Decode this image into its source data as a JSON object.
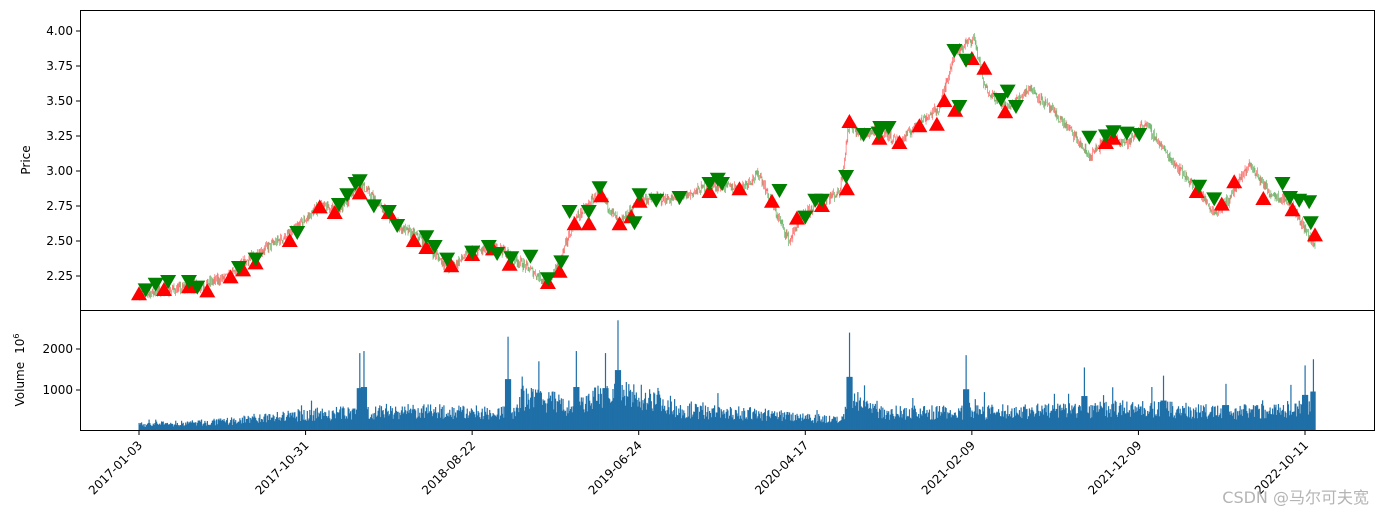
{
  "chart_data": [
    {
      "type": "candlestick",
      "ylabel": "Price",
      "ylim": [
        2.02,
        4.14
      ],
      "yticks": [
        "2.25",
        "2.50",
        "2.75",
        "3.00",
        "3.25",
        "3.50",
        "3.75",
        "4.00"
      ],
      "colors": {
        "up": "#ff0000",
        "down": "#008000",
        "buy_marker": "#ff0000",
        "sell_marker": "#008000"
      },
      "close_path": [
        [
          0,
          2.12
        ],
        [
          73,
          2.18
        ],
        [
          109,
          2.25
        ],
        [
          133,
          2.38
        ],
        [
          181,
          2.55
        ],
        [
          217,
          2.75
        ],
        [
          241,
          2.72
        ],
        [
          265,
          2.92
        ],
        [
          289,
          2.75
        ],
        [
          313,
          2.6
        ],
        [
          337,
          2.52
        ],
        [
          373,
          2.3
        ],
        [
          397,
          2.42
        ],
        [
          433,
          2.45
        ],
        [
          457,
          2.35
        ],
        [
          491,
          2.2
        ],
        [
          505,
          2.35
        ],
        [
          523,
          2.65
        ],
        [
          553,
          2.85
        ],
        [
          577,
          2.62
        ],
        [
          601,
          2.8
        ],
        [
          649,
          2.8
        ],
        [
          685,
          2.9
        ],
        [
          721,
          2.88
        ],
        [
          745,
          2.98
        ],
        [
          757,
          2.8
        ],
        [
          781,
          2.5
        ],
        [
          793,
          2.65
        ],
        [
          817,
          2.78
        ],
        [
          841,
          2.85
        ],
        [
          853,
          3.35
        ],
        [
          865,
          3.25
        ],
        [
          889,
          3.3
        ],
        [
          913,
          3.2
        ],
        [
          937,
          3.35
        ],
        [
          961,
          3.45
        ],
        [
          979,
          3.85
        ],
        [
          1003,
          3.95
        ],
        [
          1015,
          3.6
        ],
        [
          1033,
          3.5
        ],
        [
          1045,
          3.45
        ],
        [
          1069,
          3.6
        ],
        [
          1093,
          3.45
        ],
        [
          1117,
          3.3
        ],
        [
          1141,
          3.1
        ],
        [
          1165,
          3.25
        ],
        [
          1189,
          3.2
        ],
        [
          1207,
          3.35
        ],
        [
          1237,
          3.1
        ],
        [
          1273,
          2.85
        ],
        [
          1291,
          2.7
        ],
        [
          1309,
          2.8
        ],
        [
          1333,
          3.05
        ],
        [
          1357,
          2.85
        ],
        [
          1381,
          2.78
        ],
        [
          1399,
          2.6
        ],
        [
          1412,
          2.45
        ]
      ],
      "buy_signals": [
        [
          0,
          2.12
        ],
        [
          30,
          2.15
        ],
        [
          60,
          2.17
        ],
        [
          82,
          2.14
        ],
        [
          110,
          2.24
        ],
        [
          125,
          2.29
        ],
        [
          140,
          2.34
        ],
        [
          181,
          2.5
        ],
        [
          217,
          2.74
        ],
        [
          235,
          2.7
        ],
        [
          265,
          2.84
        ],
        [
          300,
          2.7
        ],
        [
          330,
          2.5
        ],
        [
          345,
          2.45
        ],
        [
          375,
          2.32
        ],
        [
          400,
          2.4
        ],
        [
          425,
          2.44
        ],
        [
          445,
          2.33
        ],
        [
          491,
          2.2
        ],
        [
          505,
          2.28
        ],
        [
          523,
          2.62
        ],
        [
          540,
          2.62
        ],
        [
          555,
          2.82
        ],
        [
          577,
          2.62
        ],
        [
          591,
          2.67
        ],
        [
          601,
          2.78
        ],
        [
          685,
          2.85
        ],
        [
          721,
          2.87
        ],
        [
          760,
          2.78
        ],
        [
          790,
          2.66
        ],
        [
          820,
          2.75
        ],
        [
          850,
          2.87
        ],
        [
          853,
          3.35
        ],
        [
          889,
          3.23
        ],
        [
          913,
          3.2
        ],
        [
          937,
          3.32
        ],
        [
          958,
          3.33
        ],
        [
          967,
          3.5
        ],
        [
          980,
          3.43
        ],
        [
          1000,
          3.8
        ],
        [
          1015,
          3.73
        ],
        [
          1040,
          3.42
        ],
        [
          1161,
          3.2
        ],
        [
          1170,
          3.23
        ],
        [
          1270,
          2.85
        ],
        [
          1300,
          2.76
        ],
        [
          1315,
          2.92
        ],
        [
          1350,
          2.8
        ],
        [
          1385,
          2.72
        ],
        [
          1412,
          2.54
        ]
      ],
      "sell_signals": [
        [
          8,
          2.14
        ],
        [
          20,
          2.18
        ],
        [
          35,
          2.2
        ],
        [
          60,
          2.2
        ],
        [
          70,
          2.16
        ],
        [
          120,
          2.3
        ],
        [
          140,
          2.36
        ],
        [
          190,
          2.55
        ],
        [
          240,
          2.75
        ],
        [
          250,
          2.82
        ],
        [
          260,
          2.9
        ],
        [
          265,
          2.92
        ],
        [
          282,
          2.74
        ],
        [
          300,
          2.7
        ],
        [
          310,
          2.6
        ],
        [
          345,
          2.52
        ],
        [
          355,
          2.45
        ],
        [
          370,
          2.36
        ],
        [
          400,
          2.41
        ],
        [
          420,
          2.45
        ],
        [
          430,
          2.4
        ],
        [
          447,
          2.37
        ],
        [
          470,
          2.38
        ],
        [
          491,
          2.22
        ],
        [
          507,
          2.34
        ],
        [
          517,
          2.7
        ],
        [
          540,
          2.7
        ],
        [
          553,
          2.87
        ],
        [
          595,
          2.62
        ],
        [
          601,
          2.82
        ],
        [
          621,
          2.78
        ],
        [
          649,
          2.8
        ],
        [
          685,
          2.9
        ],
        [
          695,
          2.93
        ],
        [
          700,
          2.9
        ],
        [
          769,
          2.85
        ],
        [
          800,
          2.66
        ],
        [
          812,
          2.78
        ],
        [
          820,
          2.78
        ],
        [
          849,
          2.95
        ],
        [
          870,
          3.25
        ],
        [
          888,
          3.26
        ],
        [
          890,
          3.3
        ],
        [
          900,
          3.3
        ],
        [
          985,
          3.45
        ],
        [
          979,
          3.85
        ],
        [
          993,
          3.78
        ],
        [
          1035,
          3.5
        ],
        [
          1043,
          3.56
        ],
        [
          1053,
          3.45
        ],
        [
          1141,
          3.23
        ],
        [
          1161,
          3.24
        ],
        [
          1170,
          3.27
        ],
        [
          1186,
          3.26
        ],
        [
          1201,
          3.25
        ],
        [
          1273,
          2.88
        ],
        [
          1291,
          2.79
        ],
        [
          1373,
          2.9
        ],
        [
          1382,
          2.8
        ],
        [
          1393,
          2.78
        ],
        [
          1405,
          2.77
        ],
        [
          1407,
          2.62
        ]
      ]
    },
    {
      "type": "bar",
      "ylabel": "Volume",
      "ylabel_exponent": "10",
      "ylabel_power": "6",
      "ylim": [
        0,
        2900
      ],
      "yticks": [
        "1000",
        "2000"
      ],
      "color": "#1f6fa8",
      "volume_baseline": [
        [
          0,
          150
        ],
        [
          100,
          220
        ],
        [
          200,
          400
        ],
        [
          300,
          480
        ],
        [
          400,
          450
        ],
        [
          450,
          450
        ],
        [
          460,
          800
        ],
        [
          500,
          700
        ],
        [
          520,
          500
        ],
        [
          560,
          900
        ],
        [
          620,
          800
        ],
        [
          650,
          500
        ],
        [
          800,
          350
        ],
        [
          840,
          250
        ],
        [
          860,
          700
        ],
        [
          900,
          450
        ],
        [
          1000,
          450
        ],
        [
          1100,
          500
        ],
        [
          1200,
          550
        ],
        [
          1300,
          450
        ],
        [
          1412,
          550
        ]
      ],
      "volume_spikes": [
        [
          270,
          1950
        ],
        [
          265,
          1900
        ],
        [
          443,
          2300
        ],
        [
          480,
          1700
        ],
        [
          525,
          1950
        ],
        [
          575,
          2700
        ],
        [
          560,
          1900
        ],
        [
          853,
          2400
        ],
        [
          993,
          1850
        ],
        [
          1135,
          1550
        ],
        [
          1230,
          1350
        ],
        [
          1400,
          1600
        ],
        [
          1410,
          1750
        ],
        [
          1305,
          1150
        ]
      ]
    }
  ],
  "xaxis": {
    "tick_labels": [
      "2017-01-03",
      "2017-10-31",
      "2018-08-22",
      "2019-06-24",
      "2020-04-17",
      "2021-02-09",
      "2021-12-09",
      "2022-10-11"
    ],
    "tick_indices": [
      0,
      200,
      400,
      600,
      800,
      1000,
      1200,
      1400
    ],
    "n_bars": 1413
  },
  "watermark": "CSDN @马尔可夫宽"
}
